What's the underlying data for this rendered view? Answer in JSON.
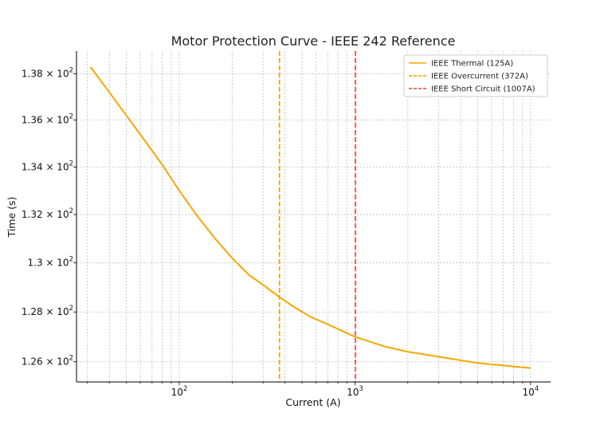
{
  "chart_data": {
    "type": "line",
    "title": "Motor Protection Curve - IEEE 242 Reference",
    "xlabel": "Current (A)",
    "ylabel": "Time (s)",
    "xscale": "log",
    "yscale": "log",
    "xlim": [
      26,
      13000
    ],
    "ylim": [
      125.2,
      139.0
    ],
    "grid": true,
    "legend_position": "top-right",
    "x_ticks": [
      {
        "value": 100,
        "base": "10",
        "exp": "2"
      },
      {
        "value": 1000,
        "base": "10",
        "exp": "3"
      },
      {
        "value": 10000,
        "base": "10",
        "exp": "4"
      }
    ],
    "y_ticks": [
      {
        "value": 126,
        "mant": "1.26",
        "exp": "2"
      },
      {
        "value": 128,
        "mant": "1.28",
        "exp": "2"
      },
      {
        "value": 130,
        "mant": "1.3",
        "exp": "2"
      },
      {
        "value": 132,
        "mant": "1.32",
        "exp": "2"
      },
      {
        "value": 134,
        "mant": "1.34",
        "exp": "2"
      },
      {
        "value": 136,
        "mant": "1.36",
        "exp": "2"
      },
      {
        "value": 138,
        "mant": "1.38",
        "exp": "2"
      }
    ],
    "series": [
      {
        "name": "IEEE Thermal (125A)",
        "color": "#f5a800",
        "style": "solid",
        "x": [
          31.25,
          40,
          50,
          62.5,
          80,
          100,
          125,
          160,
          200,
          250,
          300,
          372,
          450,
          560,
          700,
          1000,
          1500,
          2000,
          3000,
          5000,
          7000,
          10000
        ],
        "y": [
          138.3,
          137.2,
          136.2,
          135.2,
          134.1,
          133.0,
          132.0,
          131.0,
          130.2,
          129.5,
          129.1,
          128.6,
          128.2,
          127.8,
          127.5,
          127.0,
          126.6,
          126.4,
          126.2,
          125.95,
          125.85,
          125.75
        ]
      },
      {
        "name": "IEEE Overcurrent (372A)",
        "color": "#ff9900",
        "style": "dashed",
        "vline": 372
      },
      {
        "name": "IEEE Short Circuit (1007A)",
        "color": "#e8453c",
        "style": "dashed",
        "vline": 1007
      }
    ]
  }
}
